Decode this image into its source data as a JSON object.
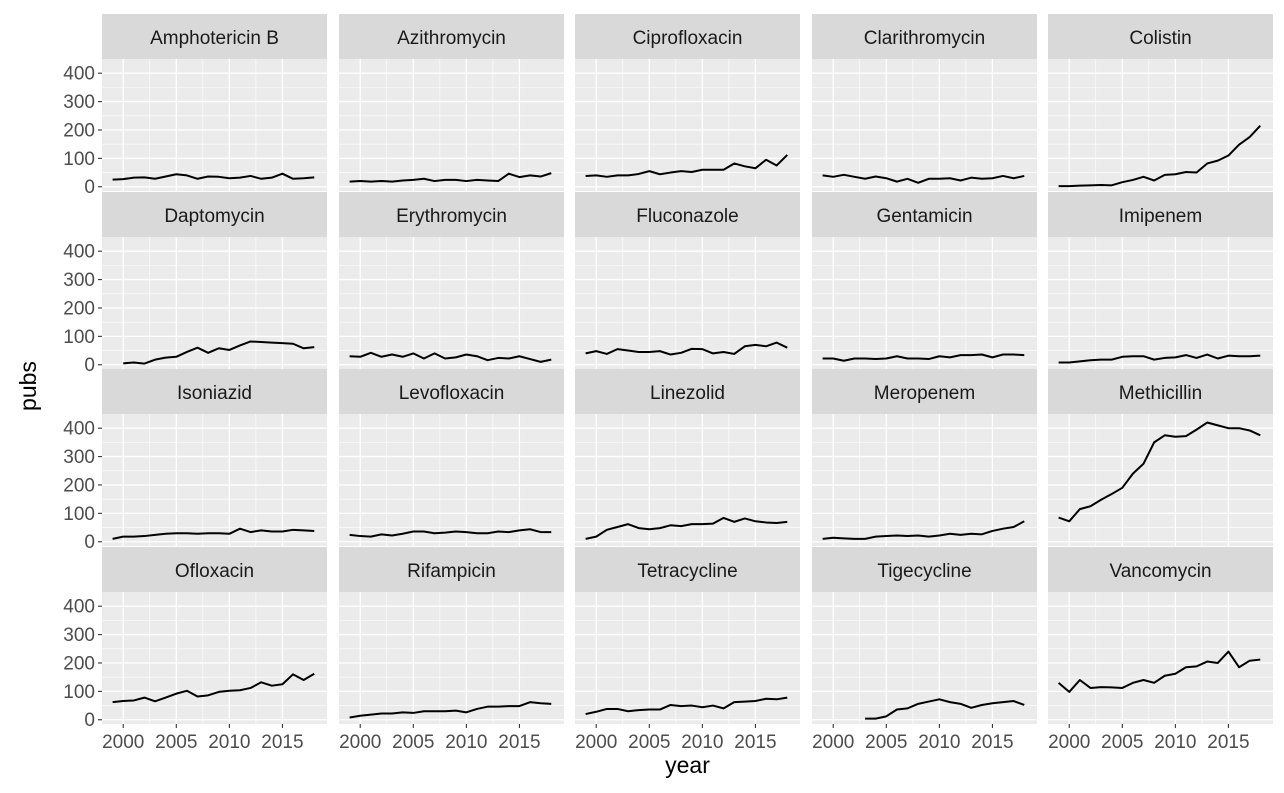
{
  "chart_data": {
    "type": "line",
    "xlabel": "year",
    "ylabel": "pubs",
    "x_ticks": [
      2000,
      2005,
      2010,
      2015
    ],
    "x_tick_labels": [
      "2000",
      "2005",
      "2010",
      "2015"
    ],
    "y_ticks": [
      0,
      100,
      200,
      300,
      400
    ],
    "y_tick_labels": [
      "0",
      "100",
      "200",
      "300",
      "400"
    ],
    "xlim": [
      1998,
      2019.2
    ],
    "ylim": [
      -15,
      450
    ],
    "grid": true,
    "facet_rows": 4,
    "facet_cols": 5,
    "x": [
      1999,
      2000,
      2001,
      2002,
      2003,
      2004,
      2005,
      2006,
      2007,
      2008,
      2009,
      2010,
      2011,
      2012,
      2013,
      2014,
      2015,
      2016,
      2017,
      2018
    ],
    "series": [
      {
        "name": "Amphotericin B",
        "values": [
          25,
          27,
          32,
          33,
          28,
          36,
          44,
          40,
          28,
          36,
          35,
          30,
          32,
          38,
          28,
          32,
          46,
          28,
          30,
          33
        ]
      },
      {
        "name": "Azithromycin",
        "values": [
          18,
          20,
          18,
          20,
          18,
          22,
          24,
          28,
          20,
          24,
          24,
          20,
          24,
          22,
          20,
          46,
          34,
          40,
          36,
          48
        ]
      },
      {
        "name": "Ciprofloxacin",
        "values": [
          38,
          40,
          35,
          40,
          40,
          45,
          55,
          44,
          50,
          55,
          52,
          60,
          60,
          60,
          82,
          72,
          65,
          95,
          75,
          112
        ]
      },
      {
        "name": "Clarithromycin",
        "values": [
          40,
          35,
          42,
          35,
          28,
          36,
          30,
          18,
          28,
          14,
          28,
          28,
          30,
          22,
          32,
          28,
          30,
          38,
          30,
          38
        ]
      },
      {
        "name": "Colistin",
        "values": [
          2,
          2,
          4,
          5,
          6,
          5,
          16,
          24,
          35,
          22,
          42,
          44,
          52,
          50,
          82,
          92,
          110,
          148,
          175,
          215
        ]
      },
      {
        "name": "Daptomycin",
        "values": [
          null,
          5,
          8,
          4,
          18,
          25,
          28,
          45,
          60,
          42,
          58,
          52,
          68,
          82,
          80,
          78,
          76,
          74,
          58,
          62
        ]
      },
      {
        "name": "Erythromycin",
        "values": [
          30,
          28,
          42,
          28,
          36,
          28,
          40,
          22,
          40,
          22,
          26,
          36,
          30,
          16,
          24,
          22,
          30,
          20,
          10,
          18
        ]
      },
      {
        "name": "Fluconazole",
        "values": [
          40,
          48,
          38,
          55,
          50,
          45,
          45,
          48,
          36,
          42,
          56,
          55,
          40,
          45,
          38,
          65,
          70,
          65,
          78,
          60
        ]
      },
      {
        "name": "Gentamicin",
        "values": [
          22,
          22,
          14,
          22,
          22,
          20,
          22,
          30,
          22,
          22,
          20,
          30,
          26,
          34,
          34,
          36,
          26,
          36,
          36,
          34
        ]
      },
      {
        "name": "Imipenem",
        "values": [
          8,
          8,
          12,
          16,
          18,
          18,
          28,
          30,
          30,
          18,
          24,
          26,
          34,
          24,
          36,
          22,
          32,
          30,
          30,
          32
        ]
      },
      {
        "name": "Isoniazid",
        "values": [
          10,
          18,
          18,
          20,
          24,
          28,
          30,
          30,
          28,
          30,
          30,
          28,
          46,
          34,
          40,
          36,
          36,
          42,
          40,
          38
        ]
      },
      {
        "name": "Levofloxacin",
        "values": [
          24,
          20,
          18,
          26,
          22,
          28,
          36,
          36,
          30,
          32,
          36,
          34,
          30,
          30,
          36,
          34,
          40,
          44,
          34,
          34
        ]
      },
      {
        "name": "Linezolid",
        "values": [
          10,
          18,
          42,
          52,
          62,
          48,
          44,
          48,
          58,
          55,
          62,
          62,
          64,
          84,
          70,
          82,
          72,
          68,
          66,
          70
        ]
      },
      {
        "name": "Meropenem",
        "values": [
          10,
          14,
          12,
          10,
          10,
          18,
          20,
          22,
          20,
          22,
          18,
          22,
          28,
          24,
          28,
          26,
          38,
          46,
          52,
          72
        ]
      },
      {
        "name": "Methicillin",
        "values": [
          85,
          72,
          115,
          125,
          148,
          168,
          190,
          240,
          275,
          350,
          375,
          370,
          372,
          395,
          420,
          410,
          400,
          400,
          392,
          375
        ]
      },
      {
        "name": "Ofloxacin",
        "values": [
          62,
          66,
          68,
          78,
          65,
          78,
          92,
          102,
          82,
          86,
          98,
          102,
          104,
          112,
          132,
          120,
          125,
          160,
          140,
          162
        ]
      },
      {
        "name": "Rifampicin",
        "values": [
          8,
          14,
          18,
          22,
          22,
          26,
          24,
          30,
          30,
          30,
          32,
          26,
          38,
          46,
          46,
          48,
          48,
          62,
          58,
          56
        ]
      },
      {
        "name": "Tetracycline",
        "values": [
          20,
          28,
          38,
          38,
          30,
          34,
          36,
          36,
          52,
          48,
          50,
          44,
          50,
          40,
          62,
          64,
          66,
          74,
          72,
          78
        ]
      },
      {
        "name": "Tigecycline",
        "values": [
          null,
          null,
          null,
          null,
          4,
          4,
          12,
          36,
          40,
          56,
          64,
          72,
          62,
          56,
          42,
          52,
          58,
          62,
          66,
          52
        ]
      },
      {
        "name": "Vancomycin",
        "values": [
          130,
          98,
          140,
          112,
          115,
          114,
          112,
          130,
          140,
          130,
          155,
          162,
          185,
          188,
          205,
          200,
          240,
          185,
          208,
          212
        ]
      }
    ]
  }
}
